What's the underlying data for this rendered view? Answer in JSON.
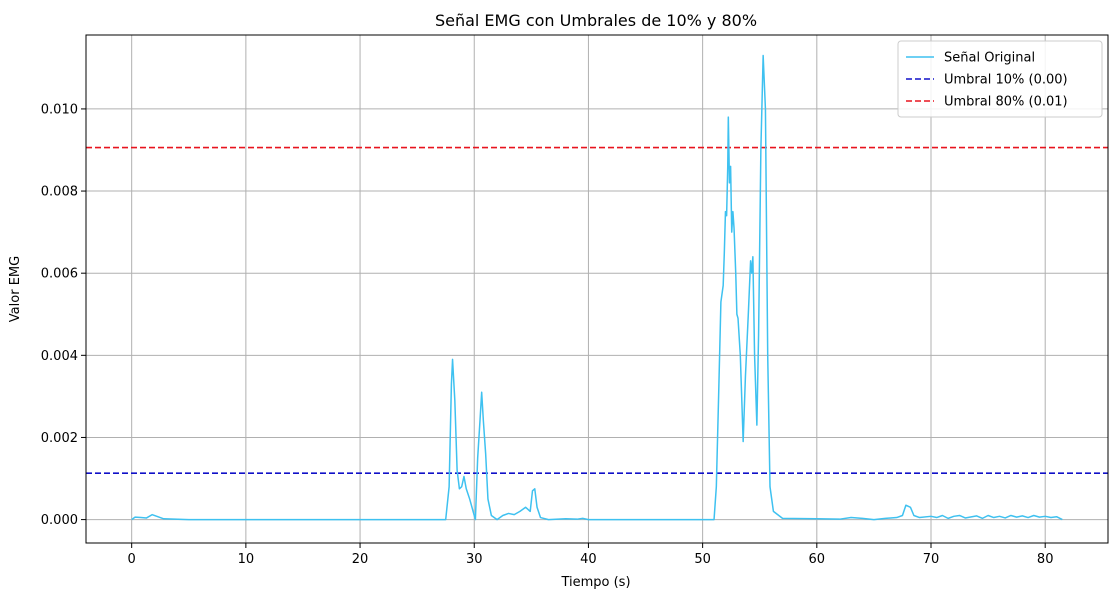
{
  "chart_data": {
    "type": "line",
    "title": "Señal EMG con Umbrales de 10% y 80%",
    "xlabel": "Tiempo (s)",
    "ylabel": "Valor EMG",
    "xlim": [
      -4,
      85.5
    ],
    "ylim": [
      -0.00057,
      0.0118
    ],
    "xticks": [
      0,
      10,
      20,
      30,
      40,
      50,
      60,
      70,
      80
    ],
    "xtick_labels": [
      "0",
      "10",
      "20",
      "30",
      "40",
      "50",
      "60",
      "70",
      "80"
    ],
    "yticks": [
      0,
      0.002,
      0.004,
      0.006,
      0.008,
      0.01
    ],
    "ytick_labels": [
      "0.000",
      "0.002",
      "0.004",
      "0.006",
      "0.008",
      "0.010"
    ],
    "grid": true,
    "legend_position": "top-right",
    "series": [
      {
        "name": "Señal Original",
        "style": "solid",
        "color": "#3ec1f0",
        "points": [
          [
            0,
            0.0
          ],
          [
            0.3,
            6e-05
          ],
          [
            0.8,
            5e-05
          ],
          [
            1.3,
            4e-05
          ],
          [
            1.8,
            0.00012
          ],
          [
            2.2,
            8e-05
          ],
          [
            2.8,
            2e-05
          ],
          [
            5,
            0.0
          ],
          [
            10,
            0.0
          ],
          [
            15,
            0.0
          ],
          [
            20,
            0.0
          ],
          [
            25,
            0.0
          ],
          [
            27.5,
            0.0
          ],
          [
            27.8,
            0.0008
          ],
          [
            28.0,
            0.0033
          ],
          [
            28.1,
            0.0039
          ],
          [
            28.3,
            0.0029
          ],
          [
            28.5,
            0.0012
          ],
          [
            28.7,
            0.00075
          ],
          [
            28.9,
            0.0008
          ],
          [
            29.1,
            0.00105
          ],
          [
            29.3,
            0.00075
          ],
          [
            29.6,
            0.0005
          ],
          [
            29.9,
            0.0002
          ],
          [
            30.1,
            0.0
          ],
          [
            30.3,
            0.0015
          ],
          [
            30.5,
            0.0024
          ],
          [
            30.65,
            0.0031
          ],
          [
            30.8,
            0.0024
          ],
          [
            31.0,
            0.0016
          ],
          [
            31.2,
            0.0005
          ],
          [
            31.5,
            0.0001
          ],
          [
            32.0,
            0.0
          ],
          [
            32.5,
            0.0001
          ],
          [
            33.0,
            0.00015
          ],
          [
            33.5,
            0.00012
          ],
          [
            34.0,
            0.0002
          ],
          [
            34.5,
            0.0003
          ],
          [
            34.9,
            0.0002
          ],
          [
            35.1,
            0.0007
          ],
          [
            35.3,
            0.00075
          ],
          [
            35.5,
            0.0003
          ],
          [
            35.8,
            5e-05
          ],
          [
            36.5,
            0.0
          ],
          [
            38,
            2e-05
          ],
          [
            39,
            1e-05
          ],
          [
            39.5,
            3e-05
          ],
          [
            40,
            0.0
          ],
          [
            45,
            0.0
          ],
          [
            50,
            0.0
          ],
          [
            51.0,
            0.0
          ],
          [
            51.2,
            0.0008
          ],
          [
            51.4,
            0.003
          ],
          [
            51.6,
            0.0053
          ],
          [
            51.8,
            0.0057
          ],
          [
            51.9,
            0.0065
          ],
          [
            52.0,
            0.0075
          ],
          [
            52.1,
            0.0074
          ],
          [
            52.2,
            0.0086
          ],
          [
            52.25,
            0.0098
          ],
          [
            52.35,
            0.0082
          ],
          [
            52.45,
            0.0086
          ],
          [
            52.55,
            0.007
          ],
          [
            52.65,
            0.0075
          ],
          [
            52.75,
            0.0071
          ],
          [
            52.9,
            0.006
          ],
          [
            53.0,
            0.005
          ],
          [
            53.1,
            0.0049
          ],
          [
            53.3,
            0.004
          ],
          [
            53.55,
            0.0019
          ],
          [
            53.75,
            0.0035
          ],
          [
            54.0,
            0.005
          ],
          [
            54.2,
            0.0063
          ],
          [
            54.3,
            0.006
          ],
          [
            54.4,
            0.0064
          ],
          [
            54.55,
            0.004
          ],
          [
            54.75,
            0.0023
          ],
          [
            54.9,
            0.0045
          ],
          [
            55.1,
            0.009
          ],
          [
            55.3,
            0.0113
          ],
          [
            55.5,
            0.01
          ],
          [
            55.7,
            0.004
          ],
          [
            55.9,
            0.0008
          ],
          [
            56.2,
            0.0002
          ],
          [
            57,
            3e-05
          ],
          [
            60,
            2e-05
          ],
          [
            62,
            1e-05
          ],
          [
            63,
            5e-05
          ],
          [
            64,
            3e-05
          ],
          [
            65,
            0.0
          ],
          [
            66,
            3e-05
          ],
          [
            67,
            5e-05
          ],
          [
            67.5,
            0.0001
          ],
          [
            67.8,
            0.00035
          ],
          [
            68.2,
            0.0003
          ],
          [
            68.5,
            0.0001
          ],
          [
            69,
            5e-05
          ],
          [
            70,
            8e-05
          ],
          [
            70.5,
            5e-05
          ],
          [
            71,
            0.0001
          ],
          [
            71.5,
            3e-05
          ],
          [
            72,
            8e-05
          ],
          [
            72.5,
            0.0001
          ],
          [
            73,
            4e-05
          ],
          [
            74,
            9e-05
          ],
          [
            74.5,
            3e-05
          ],
          [
            75,
            0.0001
          ],
          [
            75.5,
            5e-05
          ],
          [
            76,
            8e-05
          ],
          [
            76.5,
            4e-05
          ],
          [
            77,
            0.0001
          ],
          [
            77.5,
            6e-05
          ],
          [
            78,
            9e-05
          ],
          [
            78.5,
            5e-05
          ],
          [
            79,
            0.0001
          ],
          [
            79.5,
            6e-05
          ],
          [
            80,
            8e-05
          ],
          [
            80.5,
            5e-05
          ],
          [
            81,
            7e-05
          ],
          [
            81.5,
            0.0
          ]
        ]
      },
      {
        "name": "Umbral 10% (0.00)",
        "style": "dashed",
        "color": "#1010c8",
        "y": 0.00113
      },
      {
        "name": "Umbral 80% (0.01)",
        "style": "dashed",
        "color": "#e8141e",
        "y": 0.00906
      }
    ]
  }
}
